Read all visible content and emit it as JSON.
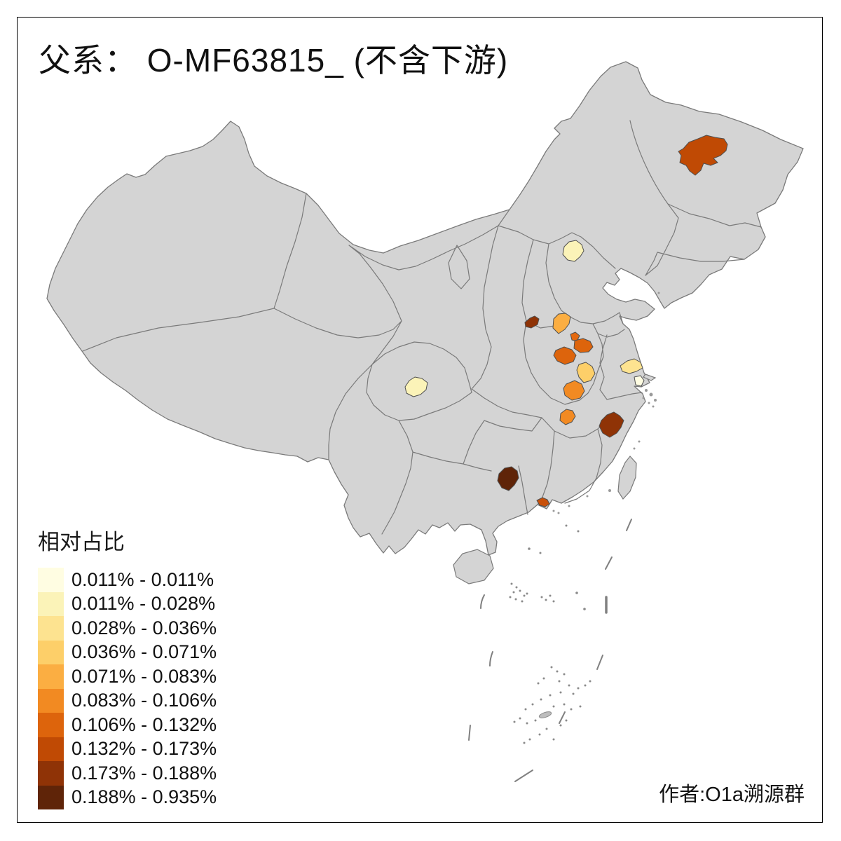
{
  "title": "父系： O-MF63815_ (不含下游)",
  "author_credit": "作者:O1a溯源群",
  "legend": {
    "title": "相对占比",
    "items": [
      {
        "label": "0.011% - 0.011%",
        "color": "#FFFDE2"
      },
      {
        "label": "0.011% - 0.028%",
        "color": "#FBF3B8"
      },
      {
        "label": "0.028% - 0.036%",
        "color": "#FDE390"
      },
      {
        "label": "0.036% - 0.071%",
        "color": "#FDCF69"
      },
      {
        "label": "0.071% - 0.083%",
        "color": "#FBAE42"
      },
      {
        "label": "0.083% - 0.106%",
        "color": "#F28A22"
      },
      {
        "label": "0.106% - 0.132%",
        "color": "#DD640C"
      },
      {
        "label": "0.132% - 0.173%",
        "color": "#C04A04"
      },
      {
        "label": "0.173% - 0.188%",
        "color": "#8F3306"
      },
      {
        "label": "0.188% - 0.935%",
        "color": "#5F2408"
      }
    ]
  },
  "map": {
    "background": "#FFFFFF",
    "land_color": "#D4D4D4",
    "border_color": "#7A7A7A",
    "region_border_color": "#4F4F4F",
    "regions": [
      {
        "id": "northeast-heilongjiang",
        "color": "#C04A04"
      },
      {
        "id": "beijing",
        "color": "#FBF3B8"
      },
      {
        "id": "chengdu",
        "color": "#FBF3B8"
      },
      {
        "id": "henan-northwest-small",
        "color": "#8F3306"
      },
      {
        "id": "henan-north",
        "color": "#FBAE42"
      },
      {
        "id": "henan-center-small",
        "color": "#E4690F"
      },
      {
        "id": "henan-east",
        "color": "#DD640C"
      },
      {
        "id": "henan-west",
        "color": "#DD640C"
      },
      {
        "id": "henan-south-yellow",
        "color": "#FDCF69"
      },
      {
        "id": "henan-south-orange",
        "color": "#F28A22"
      },
      {
        "id": "jiangsu-south",
        "color": "#FDE390"
      },
      {
        "id": "shanghai",
        "color": "#FFFDE2"
      },
      {
        "id": "hubei-east",
        "color": "#F28A22"
      },
      {
        "id": "zhejiang-west",
        "color": "#8F3306"
      },
      {
        "id": "guangxi-east",
        "color": "#5F2408"
      },
      {
        "id": "guangdong-delta",
        "color": "#C8500A"
      }
    ]
  }
}
